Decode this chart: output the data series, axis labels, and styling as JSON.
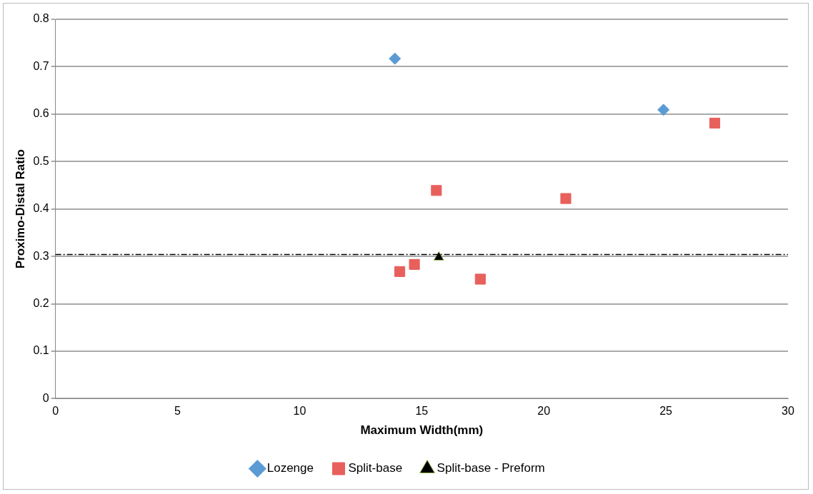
{
  "chart_data": {
    "type": "scatter",
    "xlabel": "Maximum Width(mm)",
    "ylabel": "Proximo-Distal Ratio",
    "xlim": [
      0,
      30
    ],
    "xticks": [
      0,
      5,
      10,
      15,
      20,
      25,
      30
    ],
    "ylim": [
      0,
      0.8
    ],
    "yticks": [
      0,
      0.1,
      0.2,
      0.3,
      0.4,
      0.5,
      0.6,
      0.7,
      0.8
    ],
    "grid": "y",
    "legend": "bottom",
    "series": [
      {
        "name": "Lozenge",
        "color": "#5b9bd5",
        "marker": "diamond",
        "x": [
          13.9,
          24.9
        ],
        "values": [
          0.717,
          0.609
        ]
      },
      {
        "name": "Split-base",
        "color": "#e8605c",
        "marker": "square",
        "x": [
          14.1,
          14.7,
          15.6,
          17.4,
          20.9,
          27.0
        ],
        "values": [
          0.268,
          0.283,
          0.439,
          0.252,
          0.422,
          0.581
        ]
      },
      {
        "name": "Split-base - Preform",
        "color": "#000000",
        "marker": "triangle",
        "x": [
          15.7
        ],
        "values": [
          0.298
        ]
      }
    ],
    "ref_lines": [
      {
        "axis": "y",
        "value": 0.304,
        "color": "#000000",
        "line_style": "dashdot"
      }
    ]
  }
}
